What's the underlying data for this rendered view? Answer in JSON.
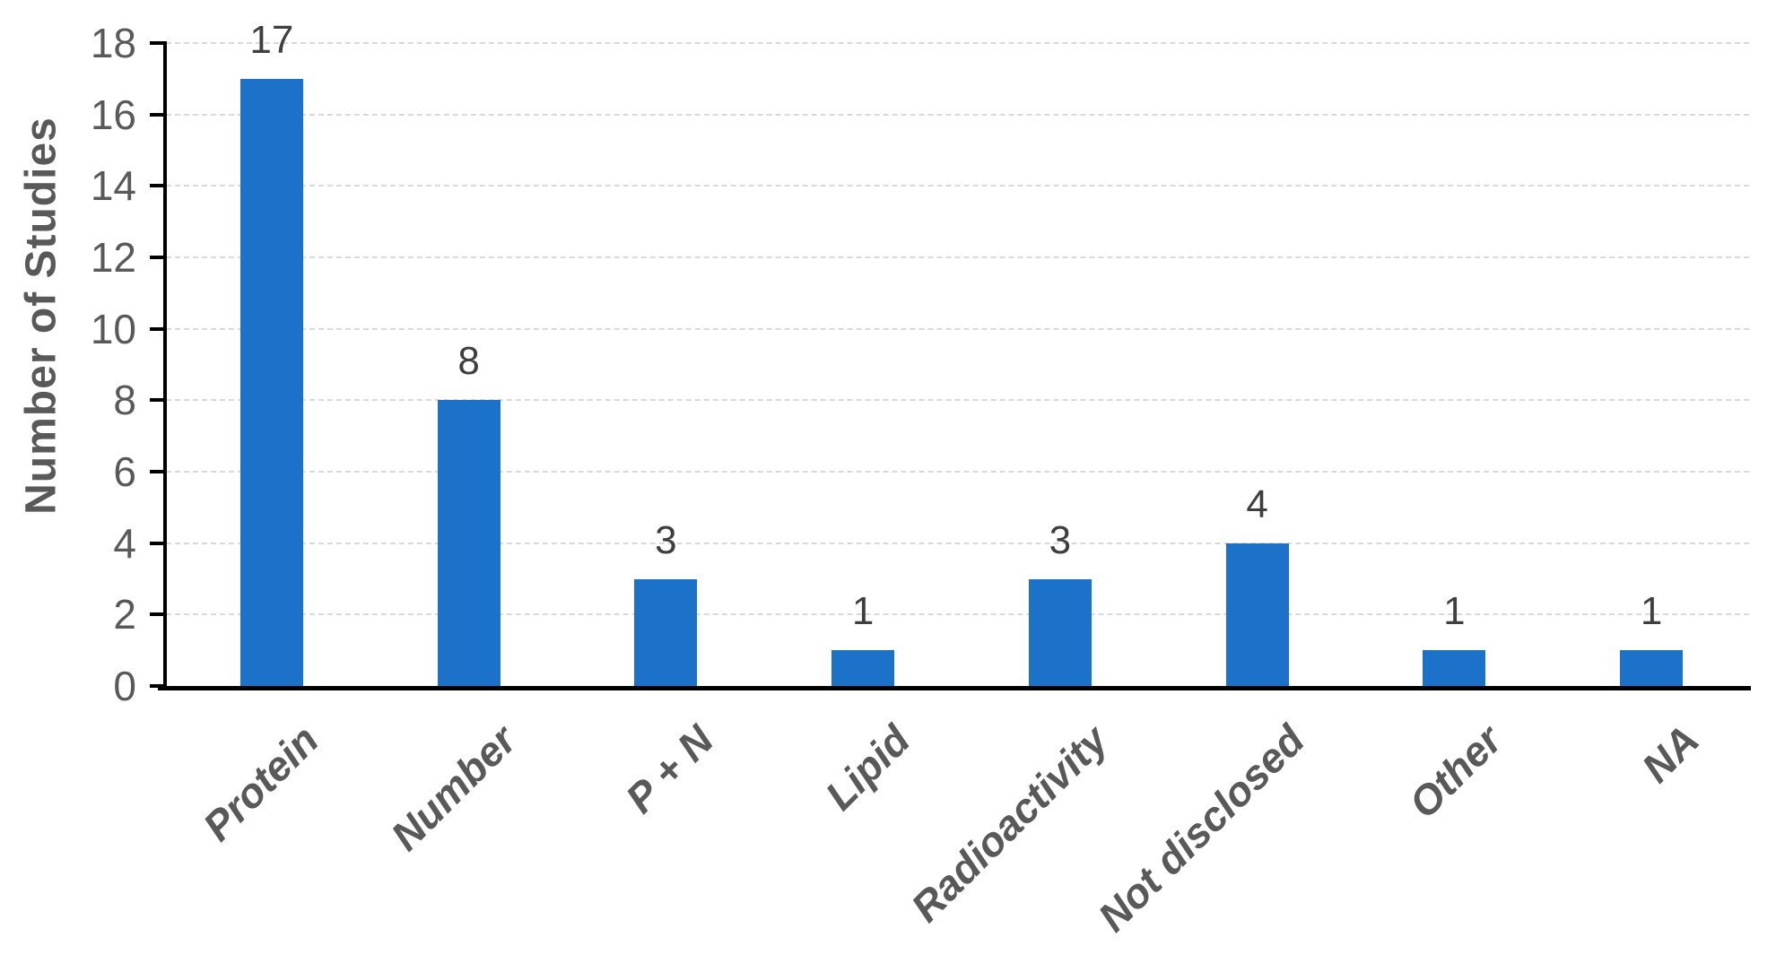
{
  "chart_data": {
    "type": "bar",
    "categories": [
      "Protein",
      "Number",
      "P + N",
      "Lipid",
      "Radioactivity",
      "Not disclosed",
      "Other",
      "NA"
    ],
    "values": [
      17,
      8,
      3,
      1,
      3,
      4,
      1,
      1
    ],
    "data_labels": [
      "17",
      "8",
      "3",
      "1",
      "3",
      "4",
      "1",
      "1"
    ],
    "title": "",
    "xlabel": "",
    "ylabel": "Number of Studies",
    "ylim": [
      0,
      18
    ],
    "yticks": [
      0,
      2,
      4,
      6,
      8,
      10,
      12,
      14,
      16,
      18
    ],
    "grid": true,
    "legend": false,
    "colors": {
      "bar": "#1C72C8",
      "axis": "#000000",
      "gridline": "#D9D9D9",
      "tick_label": "#595959",
      "data_label": "#3F3F3F",
      "x_label": "#595959",
      "y_title": "#595959"
    }
  }
}
